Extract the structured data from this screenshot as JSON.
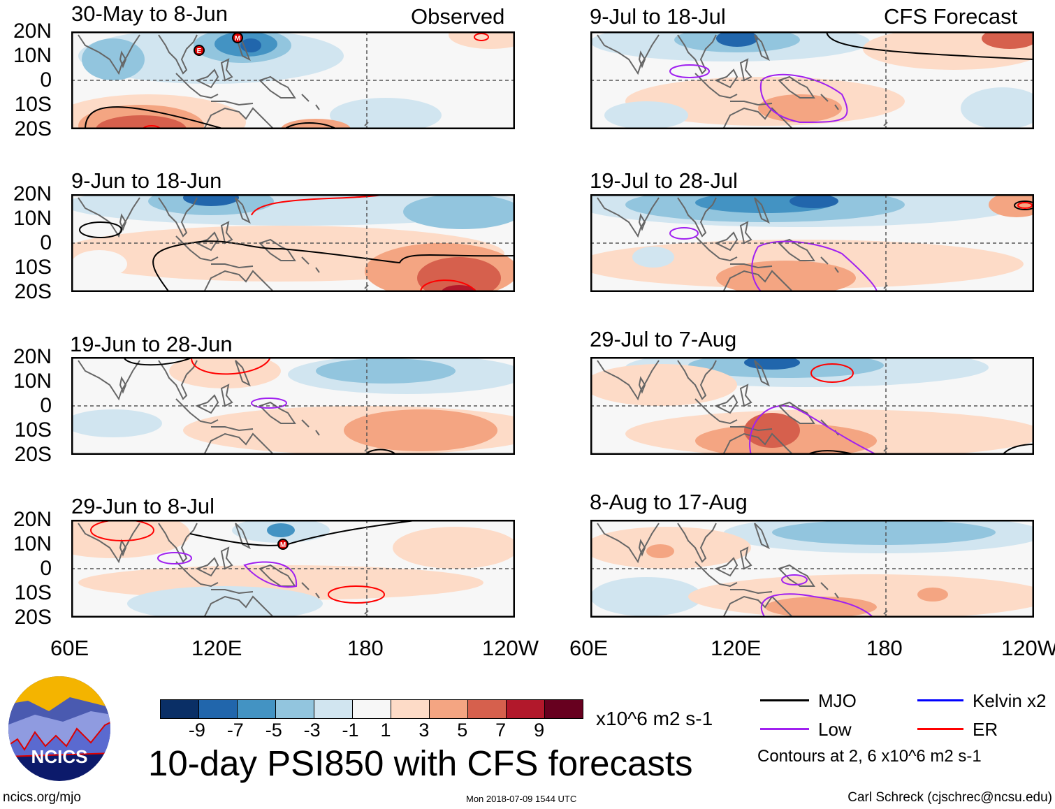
{
  "chart_data": {
    "type": "heatmap",
    "title": "10-day PSI850 with CFS forecasts",
    "variable": "PSI850 (850-hPa streamfunction anomaly)",
    "units": "x10^6 m2 s-1",
    "column_headers": [
      "Observed",
      "CFS Forecast"
    ],
    "x_tick_labels": [
      "60E",
      "120E",
      "180",
      "120W"
    ],
    "y_tick_labels": [
      "20N",
      "10N",
      "0",
      "10S",
      "20S"
    ],
    "xlim": [
      60,
      240
    ],
    "ylim": [
      -20,
      20
    ],
    "panels": [
      {
        "column": "Observed",
        "title": "30-May to 8-Jun"
      },
      {
        "column": "Observed",
        "title": "9-Jun to 18-Jun"
      },
      {
        "column": "Observed",
        "title": "19-Jun to 28-Jun"
      },
      {
        "column": "Observed",
        "title": "29-Jun to 8-Jul"
      },
      {
        "column": "CFS Forecast",
        "title": "9-Jul to 18-Jul"
      },
      {
        "column": "CFS Forecast",
        "title": "19-Jul to 28-Jul"
      },
      {
        "column": "CFS Forecast",
        "title": "29-Jul to 7-Aug"
      },
      {
        "column": "CFS Forecast",
        "title": "8-Aug to 17-Aug"
      }
    ],
    "colorbar": {
      "labels": [
        "-9",
        "-7",
        "-5",
        "-3",
        "-1",
        "1",
        "3",
        "5",
        "7",
        "9"
      ],
      "colors": [
        "#0a2f66",
        "#2166ac",
        "#4393c3",
        "#92c5de",
        "#d1e5f0",
        "#f7f7f7",
        "#fddbc7",
        "#f4a582",
        "#d6604d",
        "#b2182b",
        "#67001f"
      ],
      "units": "x10^6 m2 s-1"
    },
    "legend": [
      {
        "label": "MJO",
        "color": "#000000"
      },
      {
        "label": "Kelvin x2",
        "color": "#0000ff"
      },
      {
        "label": "Low",
        "color": "#a020f0"
      },
      {
        "label": "ER",
        "color": "#ff0000"
      }
    ],
    "contour_note": "Contours at 2, 6 x10^6 m2 s-1",
    "storm_markers": [
      "E",
      "M",
      "M"
    ]
  },
  "footer": {
    "logo_text": "NCICS",
    "url": "ncics.org/mjo",
    "timestamp": "Mon 2018-07-09 1544 UTC",
    "credit": "Carl Schreck (cjschrec@ncsu.edu)"
  }
}
